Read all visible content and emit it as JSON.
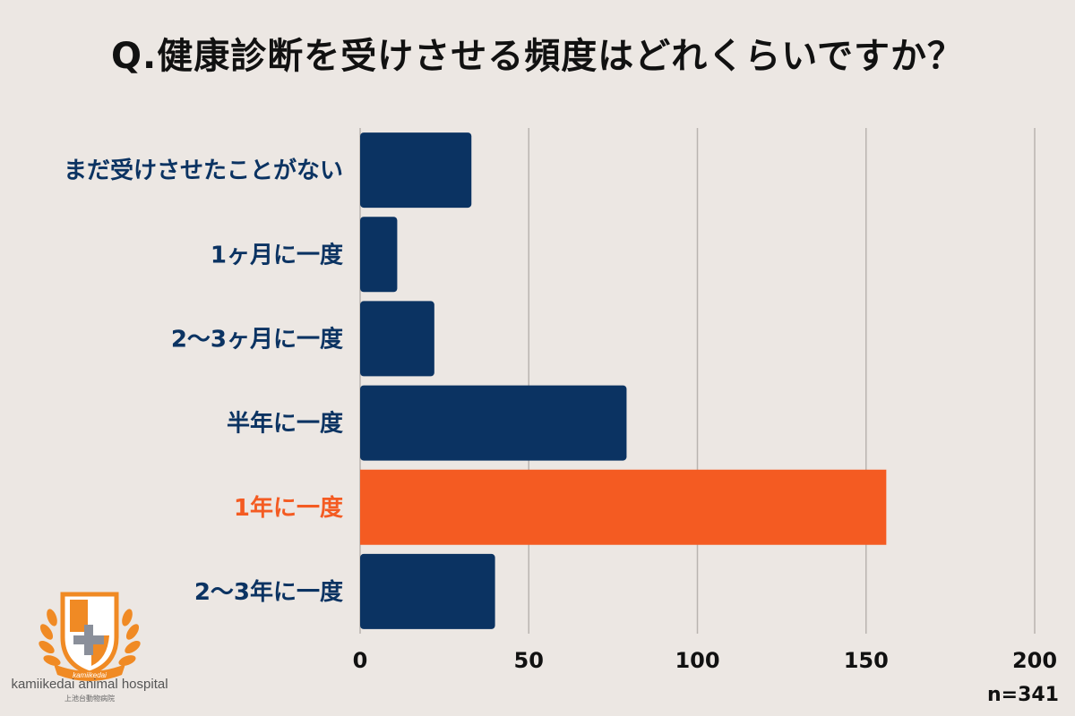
{
  "title": "Q.健康診断を受けさせる頻度はどれくらいですか？",
  "sample_size": "n=341",
  "logo": {
    "name": "kamiikedai animal hospital",
    "sub": "上池台動物病院",
    "ribbon": "kamiikedai"
  },
  "colors": {
    "background": "#ece7e3",
    "bar": "#0b3362",
    "highlight_bar": "#f45b22",
    "label": "#0b3362",
    "highlight_label": "#f45b22",
    "grid": "#b9b4b0",
    "logo": "#f08a24"
  },
  "chart_data": {
    "type": "bar",
    "orientation": "horizontal",
    "categories": [
      "まだ受けさせたことがない",
      "1ヶ月に一度",
      "2〜3ヶ月に一度",
      "半年に一度",
      "1年に一度",
      "2〜3年に一度"
    ],
    "values": [
      33,
      11,
      22,
      79,
      156,
      40
    ],
    "highlight_index": 4,
    "xlim": [
      0,
      200
    ],
    "xticks": [
      0,
      50,
      100,
      150,
      200
    ],
    "grid": true,
    "title": "Q.健康診断を受けさせる頻度はどれくらいですか？",
    "xlabel": "",
    "ylabel": ""
  }
}
